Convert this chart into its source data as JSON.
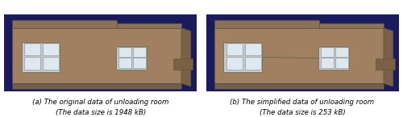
{
  "figsize": [
    5.0,
    1.46
  ],
  "dpi": 100,
  "background_color": "#ffffff",
  "caption_a_line1": "(a) The original data of unloading room",
  "caption_a_line2": "(The data size is 1948 kB)",
  "caption_b_line1": "(b) The simplified data of unloading room",
  "caption_b_line2": "(The data size is 253 kB)",
  "caption_fontsize": 6.2,
  "bg_blue": "#1a1a5e",
  "wall_color": "#a08060",
  "wall_dark": "#7a6045",
  "roof_color": "#8a7055",
  "window_outer": "#c8c8c8",
  "window_inner": "#dce8f0",
  "window_frame": "#888888",
  "step_color": "#706050"
}
